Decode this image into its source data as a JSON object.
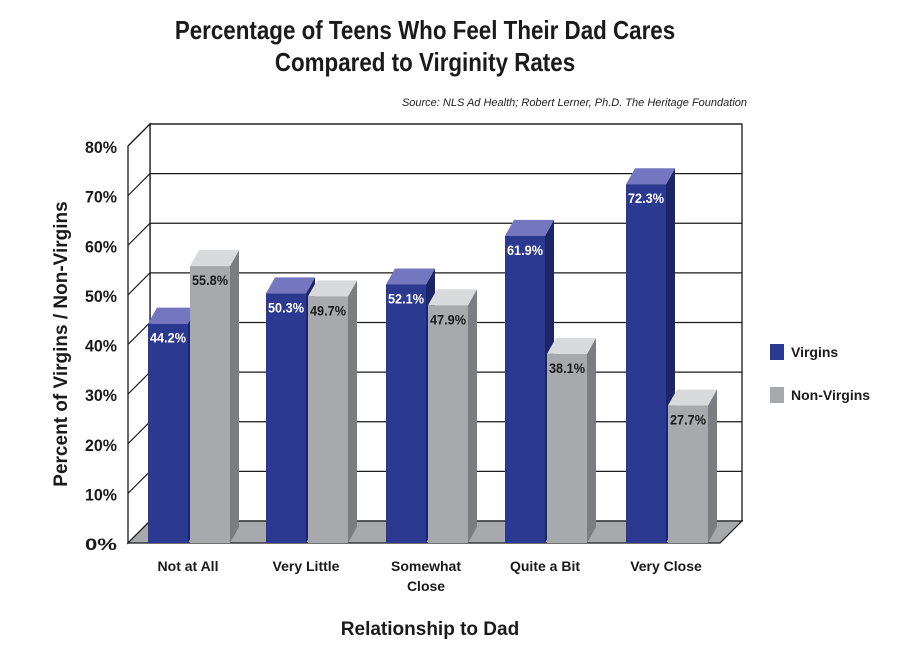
{
  "title_lines": [
    "Percentage of Teens Who Feel Their Dad Cares",
    "Compared to Virginity Rates"
  ],
  "source": "Source: NLS Ad Health; Robert Lerner, Ph.D.  The Heritage Foundation",
  "chart_data": {
    "type": "bar",
    "title": "Percentage of Teens Who Feel Their Dad Cares Compared to Virginity Rates",
    "xlabel": "Relationship to Dad",
    "ylabel": "Percent of Virgins / Non-Virgins",
    "categories": [
      [
        "Not at All"
      ],
      [
        "Very Little"
      ],
      [
        "Somewhat",
        "Close"
      ],
      [
        "Quite a Bit"
      ],
      [
        "Very Close"
      ]
    ],
    "series": [
      {
        "name": "Virgins",
        "values": [
          44.2,
          50.3,
          52.1,
          61.9,
          72.3
        ],
        "labels": [
          "44.2%",
          "50.3%",
          "52.1%",
          "61.9%",
          "72.3%"
        ]
      },
      {
        "name": "Non-Virgins",
        "values": [
          55.8,
          49.7,
          47.9,
          38.1,
          27.7
        ],
        "labels": [
          "55.8%",
          "49.7%",
          "47.9%",
          "38.1%",
          "27.7%"
        ]
      }
    ],
    "yticks": [
      "0%",
      "10%",
      "20%",
      "30%",
      "40%",
      "50%",
      "60%",
      "70%",
      "80%"
    ],
    "ylim": [
      0,
      80
    ],
    "grid": true,
    "legend_position": "right",
    "colors": {
      "virgins": "#2b3990",
      "virgins_side": "#1c2566",
      "virgins_top": "#7477bf",
      "non_virgins": "#a7a9ac",
      "non_virgins_side": "#7b7d80",
      "non_virgins_top": "#d9dadb"
    }
  }
}
